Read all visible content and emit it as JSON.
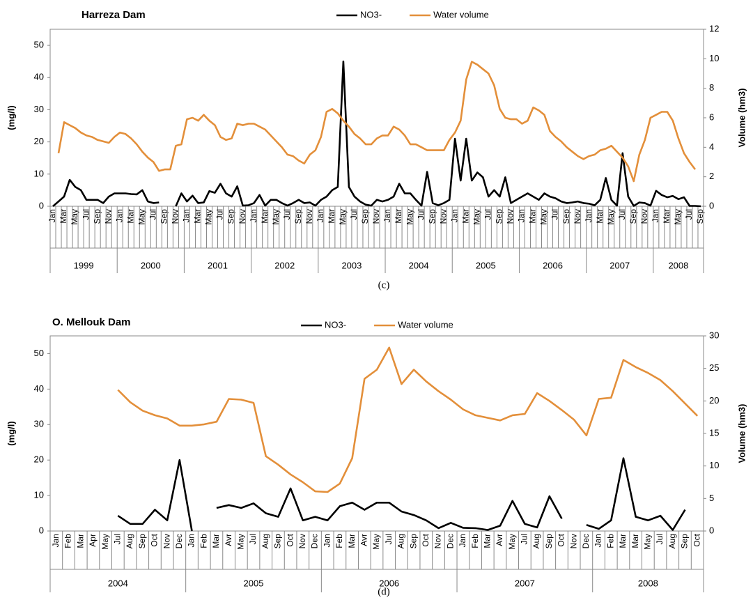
{
  "chart_data": [
    {
      "type": "line",
      "title": "Harreza Dam",
      "caption": "(c)",
      "ylabel": "(mg/l)",
      "y2label": "Volume (hm3)",
      "ylim": [
        0,
        55
      ],
      "yticks": [
        0,
        10,
        20,
        30,
        40,
        50
      ],
      "y2lim": [
        0,
        12
      ],
      "y2ticks": [
        0,
        2,
        4,
        6,
        8,
        10,
        12
      ],
      "category_groups": [
        {
          "label": "1999",
          "categories": [
            "Jan",
            null,
            "Mar",
            null,
            "May",
            null,
            "Jul",
            null,
            "Sep",
            null,
            "Nov",
            null
          ]
        },
        {
          "label": "2000",
          "categories": [
            "Jan",
            null,
            "Mar",
            null,
            "May",
            null,
            "Jul",
            null,
            "Sep",
            null,
            "Nov",
            null
          ]
        },
        {
          "label": "2001",
          "categories": [
            "Jan",
            null,
            "Mar",
            null,
            "May",
            null,
            "Jul",
            null,
            "Sep",
            null,
            "Nov",
            null
          ]
        },
        {
          "label": "2002",
          "categories": [
            "Jan",
            null,
            "Mar",
            null,
            "May",
            null,
            "Jul",
            null,
            "Sep",
            null,
            "Nov",
            null
          ]
        },
        {
          "label": "2003",
          "categories": [
            "Jan",
            null,
            "Mar",
            null,
            "May",
            null,
            "Jul",
            null,
            "Sep",
            null,
            "Nov",
            null
          ]
        },
        {
          "label": "2004",
          "categories": [
            "Jan",
            null,
            "Mar",
            null,
            "May",
            null,
            "Jul",
            null,
            "Sep",
            null,
            "Nov",
            null
          ]
        },
        {
          "label": "2005",
          "categories": [
            "Jan",
            null,
            "Mar",
            null,
            "May",
            null,
            "Jul",
            null,
            "Sep",
            null,
            "Nov",
            null
          ]
        },
        {
          "label": "2006",
          "categories": [
            "Jan",
            null,
            "Mar",
            null,
            "May",
            null,
            "Jul",
            null,
            "Sep",
            null,
            "Nov",
            null
          ]
        },
        {
          "label": "2007",
          "categories": [
            "Jan",
            null,
            "Mar",
            null,
            "May",
            null,
            "Jul",
            null,
            "Sep",
            null,
            "Nov",
            null
          ]
        },
        {
          "label": "2008",
          "categories": [
            "Jan",
            null,
            "Mar",
            null,
            "May",
            null,
            "Jul",
            null,
            "Sep"
          ]
        }
      ],
      "series": [
        {
          "name": "NO3-",
          "color": "#000000",
          "values": [
            0,
            1.5,
            3,
            8.2,
            6,
            5,
            2,
            2,
            2,
            1,
            3,
            4,
            4,
            4,
            3.8,
            3.7,
            5,
            1.5,
            1,
            1.2,
            null,
            null,
            0,
            4,
            1.5,
            3.3,
            1,
            1.2,
            4.7,
            4.2,
            7,
            4,
            3,
            6.2,
            0.2,
            0.3,
            1,
            3.5,
            0.2,
            2,
            2,
            1,
            0.2,
            1,
            2,
            1,
            1.2,
            0.2,
            2,
            3,
            5,
            6,
            45,
            6,
            3,
            1.5,
            0.5,
            0.2,
            2,
            1.5,
            2,
            3,
            7,
            4,
            4,
            2,
            0.2,
            10.7,
            1,
            0.3,
            1,
            2,
            21,
            8,
            21,
            8,
            10.5,
            9,
            3,
            5,
            3,
            9,
            1,
            2,
            3,
            4,
            3,
            2,
            4,
            3,
            2.5,
            1.5,
            1,
            1.2,
            1.5,
            1,
            0.8,
            0.3,
            2,
            8.8,
            2,
            0.2,
            16.5,
            3,
            0.1,
            1.2,
            1,
            0.2,
            4.8,
            3.5,
            2.8,
            3.2,
            2.2,
            2.8,
            0.1,
            0.1,
            0
          ]
        },
        {
          "name": "Water volume",
          "color": "#e38f3a",
          "axis": "y2",
          "values": [
            null,
            3.6,
            5.7,
            5.5,
            5.3,
            5.0,
            4.8,
            4.7,
            4.5,
            4.4,
            4.3,
            4.7,
            5.0,
            4.9,
            4.6,
            4.2,
            3.7,
            3.3,
            3.0,
            2.4,
            2.5,
            2.5,
            4.1,
            4.2,
            5.9,
            6.0,
            5.8,
            6.2,
            5.8,
            5.5,
            4.7,
            4.5,
            4.6,
            5.6,
            5.5,
            5.6,
            5.6,
            5.4,
            5.2,
            4.8,
            4.4,
            4.0,
            3.5,
            3.4,
            3.1,
            2.9,
            3.5,
            3.8,
            4.7,
            6.4,
            6.6,
            6.3,
            5.8,
            5.4,
            4.9,
            4.6,
            4.2,
            4.2,
            4.6,
            4.8,
            4.8,
            5.4,
            5.2,
            4.8,
            4.2,
            4.2,
            4.0,
            3.8,
            3.8,
            3.8,
            3.8,
            4.5,
            5.0,
            5.8,
            8.6,
            9.8,
            9.6,
            9.3,
            9.0,
            8.2,
            6.6,
            6.0,
            5.9,
            5.9,
            5.6,
            5.8,
            6.7,
            6.5,
            6.2,
            5.1,
            4.7,
            4.4,
            4.0,
            3.7,
            3.4,
            3.2,
            3.4,
            3.5,
            3.8,
            3.9,
            4.1,
            3.7,
            3.3,
            2.7,
            1.7,
            3.5,
            4.5,
            6.0,
            6.2,
            6.4,
            6.4,
            5.8,
            4.6,
            3.6,
            3.0,
            2.5,
            null
          ]
        }
      ]
    },
    {
      "type": "line",
      "title": "O. Mellouk Dam",
      "caption": "(d)",
      "ylabel": "(mg/l)",
      "y2label": "Volume (hm3)",
      "ylim": [
        0,
        55
      ],
      "yticks": [
        0,
        10,
        20,
        30,
        40,
        50
      ],
      "y2lim": [
        0,
        30
      ],
      "y2ticks": [
        0,
        5,
        10,
        15,
        20,
        25,
        30
      ],
      "category_groups": [
        {
          "label": "2004",
          "categories": [
            "Jan",
            "Feb",
            "Mar",
            "Apr",
            "May",
            "Jul",
            "Aug",
            "Sep",
            "Oct",
            "Nov",
            "Dec"
          ]
        },
        {
          "label": "2005",
          "categories": [
            "Jan",
            "Feb",
            "Mar",
            "Avr",
            "May",
            "Jul",
            "Aug",
            "Sep",
            "Oct",
            "Nov",
            "Dec"
          ]
        },
        {
          "label": "2006",
          "categories": [
            "Jan",
            "Feb",
            "Mar",
            "Avr",
            "May",
            "Jul",
            "Aug",
            "Sep",
            "Oct",
            "Nov",
            "Dec"
          ]
        },
        {
          "label": "2007",
          "categories": [
            "Jan",
            "Feb",
            "Mar",
            "Avr",
            "May",
            "Jul",
            "Aug",
            "Sep",
            "Oct",
            "Nov",
            "Dec"
          ]
        },
        {
          "label": "2008",
          "categories": [
            "Jan",
            "Feb",
            "Mar",
            "Mar",
            "May",
            "Jul",
            "Aug",
            "Sep",
            "Oct"
          ]
        }
      ],
      "series": [
        {
          "name": "NO3-",
          "color": "#000000",
          "values": [
            null,
            null,
            null,
            null,
            null,
            4.3,
            2,
            2,
            6,
            3,
            20,
            0,
            null,
            6.5,
            7.3,
            6.5,
            7.8,
            5,
            4,
            12,
            3,
            4,
            3,
            7,
            8,
            6,
            8,
            8,
            5.5,
            4.5,
            3,
            0.8,
            2.3,
            0.9,
            0.8,
            0.3,
            1.5,
            8.5,
            2,
            1,
            9.8,
            3.5,
            null,
            1.7,
            0.6,
            3,
            20.5,
            4,
            3,
            4.3,
            0.3,
            6,
            null
          ]
        },
        {
          "name": "Water volume",
          "color": "#e38f3a",
          "axis": "y2",
          "values": [
            null,
            null,
            null,
            null,
            null,
            21.7,
            19.8,
            18.5,
            17.8,
            17.3,
            16.2,
            16.2,
            16.4,
            16.8,
            20.3,
            20.2,
            19.7,
            11.5,
            10.2,
            8.7,
            7.5,
            6.1,
            6.0,
            7.3,
            11.2,
            23.4,
            24.8,
            28.2,
            22.6,
            24.8,
            23.0,
            21.5,
            20.2,
            18.7,
            17.8,
            17.4,
            17.0,
            17.8,
            18.0,
            21.2,
            20.0,
            18.6,
            17.1,
            14.7,
            20.3,
            20.5,
            26.3,
            25.2,
            24.3,
            23.2,
            21.5,
            19.6,
            17.7
          ]
        }
      ]
    }
  ]
}
